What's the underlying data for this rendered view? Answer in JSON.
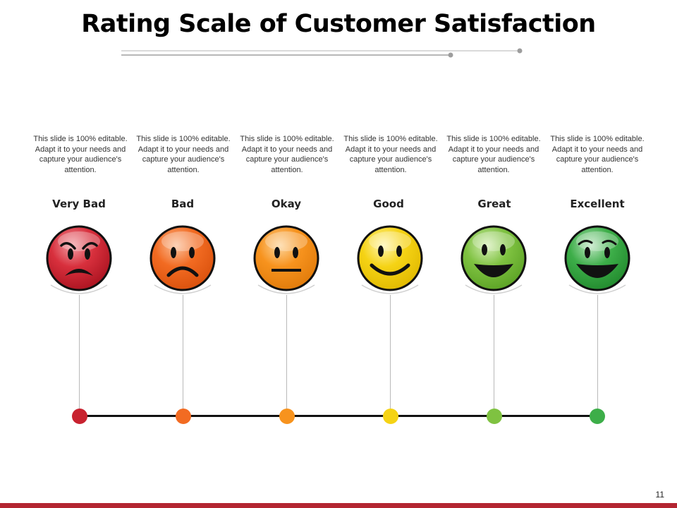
{
  "title": "Rating Scale of Customer Satisfaction",
  "page_number": "11",
  "colors": {
    "very_bad": "#c8222f",
    "bad": "#f26b22",
    "okay": "#f7931e",
    "good": "#f5d315",
    "great": "#7fc241",
    "excellent": "#3dae49",
    "footer": "#b32531"
  },
  "ratings": [
    {
      "label": "Very Bad",
      "desc": "This slide is 100% editable. Adapt it to your needs and capture your audience's attention.",
      "face": "very-angry-face"
    },
    {
      "label": "Bad",
      "desc": "This slide is 100% editable. Adapt it to your needs and capture your audience's attention.",
      "face": "sad-face"
    },
    {
      "label": "Okay",
      "desc": "This slide is 100% editable. Adapt it to your needs and capture your audience's attention.",
      "face": "neutral-face"
    },
    {
      "label": "Good",
      "desc": "This slide is 100% editable. Adapt it to your needs and capture your audience's attention.",
      "face": "smiling-face"
    },
    {
      "label": "Great",
      "desc": "This slide is 100% editable. Adapt it to your needs and capture your audience's attention.",
      "face": "grinning-face"
    },
    {
      "label": "Excellent",
      "desc": "This slide is 100% editable. Adapt it to your needs and capture your audience's attention.",
      "face": "laughing-face"
    }
  ]
}
